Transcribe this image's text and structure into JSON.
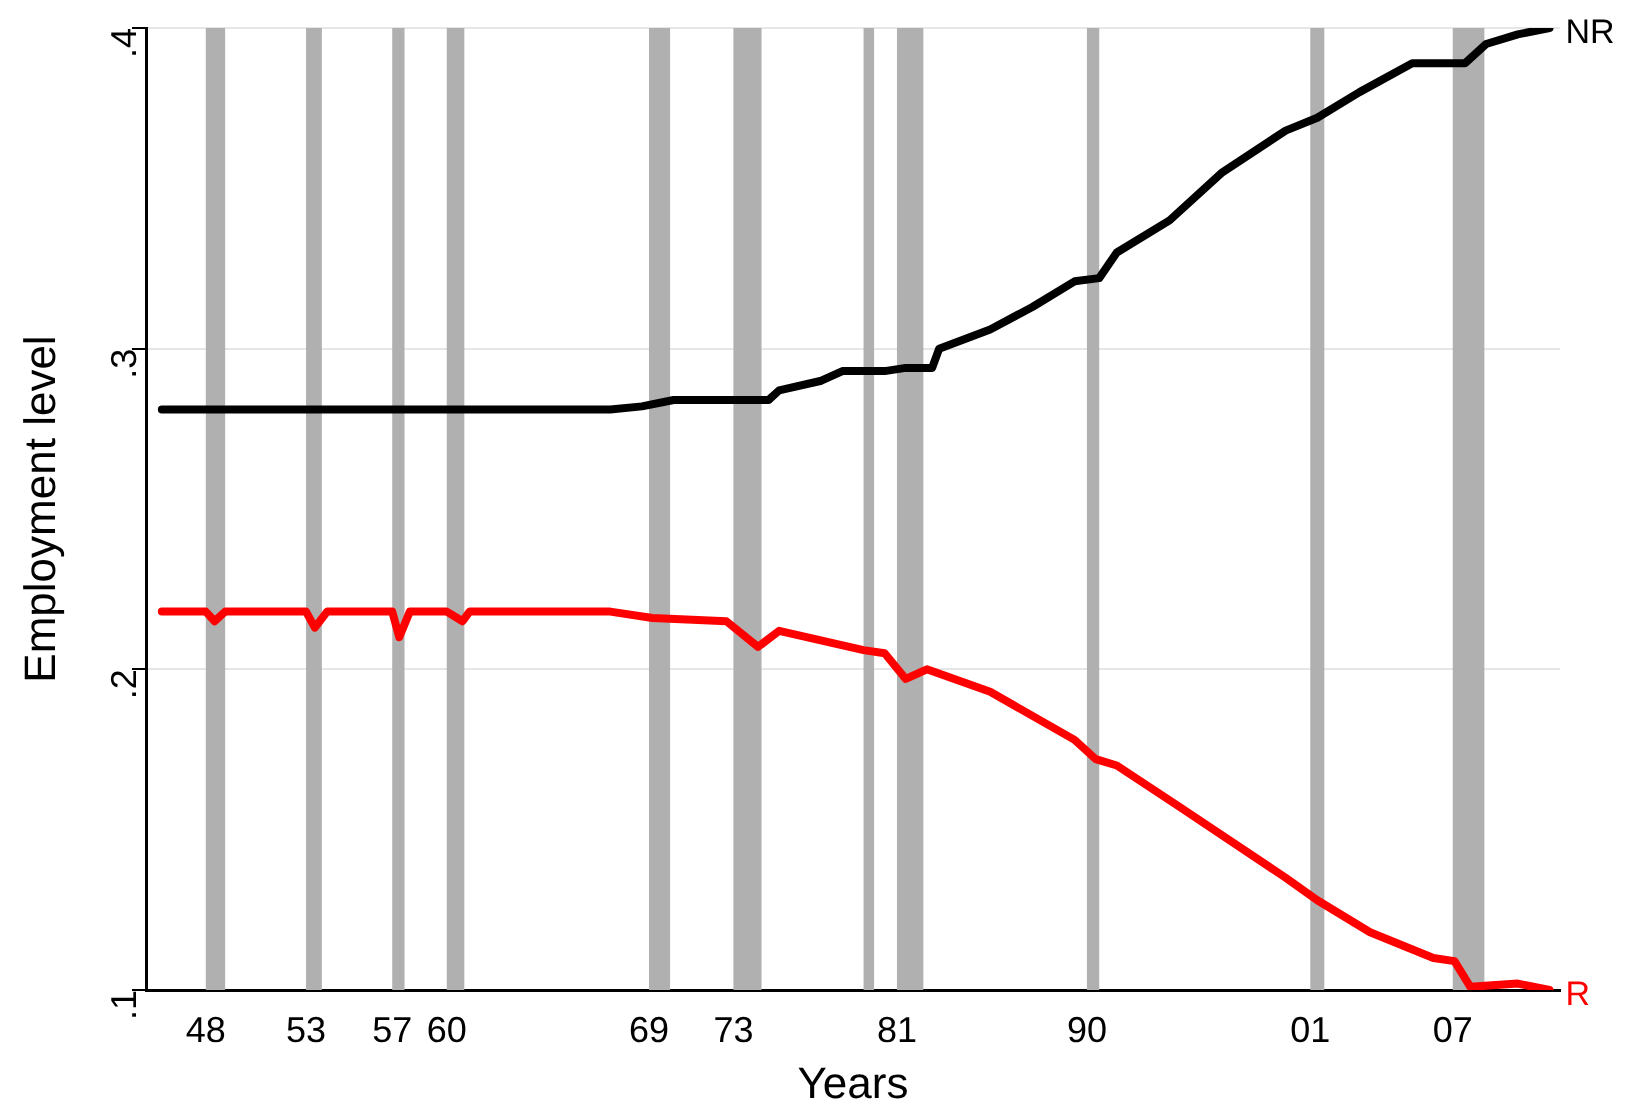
{
  "chart_data": {
    "type": "line",
    "xlabel": "Years",
    "ylabel": "Employment level",
    "xlim": [
      "1946-01",
      "2013-01"
    ],
    "ylim": [
      0.1,
      0.4
    ],
    "xticks": [
      {
        "value": "1948-11",
        "label": "48"
      },
      {
        "value": "1953-08",
        "label": "53"
      },
      {
        "value": "1957-09",
        "label": "57"
      },
      {
        "value": "1960-04",
        "label": "60"
      },
      {
        "value": "1969-11",
        "label": "69"
      },
      {
        "value": "1973-11",
        "label": "73"
      },
      {
        "value": "1981-08",
        "label": "81"
      },
      {
        "value": "1990-08",
        "label": "90"
      },
      {
        "value": "2001-03",
        "label": "01"
      },
      {
        "value": "2007-12",
        "label": "07"
      }
    ],
    "yticks": [
      {
        "value": 0.1,
        "label": ".1"
      },
      {
        "value": 0.2,
        "label": ".2"
      },
      {
        "value": 0.3,
        "label": ".3"
      },
      {
        "value": 0.4,
        "label": ".4"
      }
    ],
    "grid": "y",
    "legend": false,
    "marker": "none",
    "line_style": "solid",
    "bands": [
      {
        "axis": "x",
        "from": "1948-11",
        "to": "1949-10",
        "color": "#b0b0b0"
      },
      {
        "axis": "x",
        "from": "1953-08",
        "to": "1954-05",
        "color": "#b0b0b0"
      },
      {
        "axis": "x",
        "from": "1957-09",
        "to": "1958-04",
        "color": "#b0b0b0"
      },
      {
        "axis": "x",
        "from": "1960-04",
        "to": "1961-02",
        "color": "#b0b0b0"
      },
      {
        "axis": "x",
        "from": "1969-11",
        "to": "1970-11",
        "color": "#b0b0b0"
      },
      {
        "axis": "x",
        "from": "1973-11",
        "to": "1975-03",
        "color": "#b0b0b0"
      },
      {
        "axis": "x",
        "from": "1980-01",
        "to": "1980-07",
        "color": "#b0b0b0"
      },
      {
        "axis": "x",
        "from": "1981-08",
        "to": "1982-11",
        "color": "#b0b0b0"
      },
      {
        "axis": "x",
        "from": "1990-08",
        "to": "1991-03",
        "color": "#b0b0b0"
      },
      {
        "axis": "x",
        "from": "2001-03",
        "to": "2001-11",
        "color": "#b0b0b0"
      },
      {
        "axis": "x",
        "from": "2007-12",
        "to": "2009-06",
        "color": "#b0b0b0"
      }
    ],
    "series": [
      {
        "name": "NR",
        "color": "#000000",
        "x": [
          "1946-10",
          "1968-01",
          "1969-07",
          "1971-01",
          "1975-07",
          "1976-01",
          "1978-01",
          "1979-01",
          "1981-01",
          "1982-01",
          "1983-04",
          "1983-08",
          "1986-01",
          "1988-01",
          "1990-01",
          "1991-03",
          "1992-01",
          "1994-07",
          "1997-01",
          "2000-01",
          "2001-07",
          "2003-07",
          "2006-01",
          "2008-07",
          "2009-07",
          "2011-01",
          "2012-07"
        ],
        "values": [
          0.281,
          0.281,
          0.282,
          0.284,
          0.284,
          0.287,
          0.29,
          0.293,
          0.293,
          0.294,
          0.294,
          0.3,
          0.306,
          0.313,
          0.321,
          0.322,
          0.33,
          0.34,
          0.355,
          0.368,
          0.372,
          0.38,
          0.389,
          0.389,
          0.395,
          0.398,
          0.4
        ]
      },
      {
        "name": "R",
        "color": "#ff0000",
        "x": [
          "1946-10",
          "1948-11",
          "1949-04",
          "1949-10",
          "1953-08",
          "1954-01",
          "1954-08",
          "1957-09",
          "1958-01",
          "1958-07",
          "1960-04",
          "1961-01",
          "1961-05",
          "1968-01",
          "1970-01",
          "1973-07",
          "1975-01",
          "1976-01",
          "1980-01",
          "1981-01",
          "1982-01",
          "1983-01",
          "1986-01",
          "1990-01",
          "1991-01",
          "1992-01",
          "1995-01",
          "2000-01",
          "2001-07",
          "2004-01",
          "2007-01",
          "2008-01",
          "2008-10",
          "2011-01",
          "2012-07"
        ],
        "values": [
          0.218,
          0.218,
          0.215,
          0.218,
          0.218,
          0.213,
          0.218,
          0.218,
          0.21,
          0.218,
          0.218,
          0.215,
          0.218,
          0.218,
          0.216,
          0.215,
          0.207,
          0.212,
          0.206,
          0.205,
          0.197,
          0.2,
          0.193,
          0.178,
          0.172,
          0.17,
          0.157,
          0.135,
          0.128,
          0.118,
          0.11,
          0.109,
          0.101,
          0.102,
          0.1
        ]
      }
    ]
  }
}
